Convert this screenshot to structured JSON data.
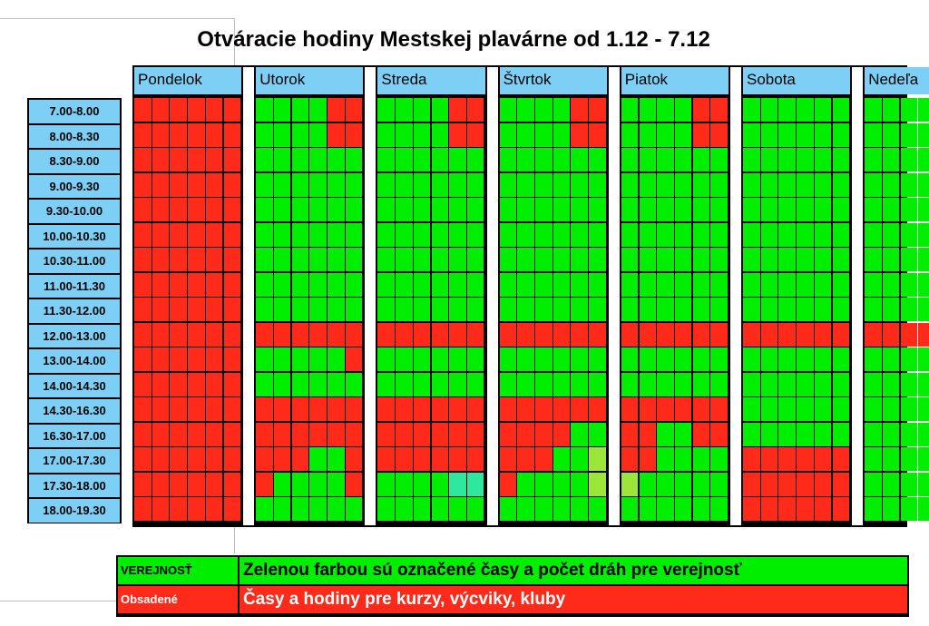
{
  "title": "Otváracie hodiny Mestskej plavárne od 1.12 - 7.12",
  "colors": {
    "public": "#00ee00",
    "occupied": "#ff2a1a",
    "header": "#7ecff5",
    "teal": "#2ee8a0",
    "lime": "#9ce63a"
  },
  "times": [
    "7.00-8.00",
    "8.00-8.30",
    "8.30-9.00",
    "9.00-9.30",
    "9.30-10.00",
    "10.00-10.30",
    "10.30-11.00",
    "11.00-11.30",
    "11.30-12.00",
    "12.00-13.00",
    "13.00-14.00",
    "14.00-14.30",
    "14.30-16.30",
    "16.30-17.00",
    "17.00-17.30",
    "17.30-18.00",
    "18.00-19.30"
  ],
  "schedule": [
    {
      "name": "Pondelok",
      "rows": [
        "RRRRRR",
        "RRRRRR",
        "RRRRRR",
        "RRRRRR",
        "RRRRRR",
        "RRRRRR",
        "RRRRRR",
        "RRRRRR",
        "RRRRRR",
        "RRRRRR",
        "RRRRRR",
        "RRRRRR",
        "RRRRRR",
        "RRRRRR",
        "RRRRRR",
        "RRRRRR",
        "RRRRRR"
      ]
    },
    {
      "name": "Utorok",
      "rows": [
        "GGGGRR",
        "GGGGRR",
        "GGGGGG",
        "GGGGGG",
        "GGGGGG",
        "GGGGGG",
        "GGGGGG",
        "GGGGGG",
        "GGGGGG",
        "RRRRRR",
        "GGGGGR",
        "GGGGGG",
        "RRRRRR",
        "RRRRRR",
        "RRRGGR",
        "RGGGGR",
        "GGGGGG"
      ]
    },
    {
      "name": "Streda",
      "rows": [
        "GGGGRR",
        "GGGGRR",
        "GGGGGG",
        "GGGGGG",
        "GGGGGG",
        "GGGGGG",
        "GGGGGG",
        "GGGGGG",
        "GGGGGG",
        "RRRRRR",
        "GGGGGG",
        "GGGGGG",
        "RRRRRR",
        "RRRRRR",
        "RRRRRR",
        "GGGGTT",
        "GGGGGG"
      ]
    },
    {
      "name": "Štvrtok",
      "rows": [
        "GGGGRR",
        "GGGGRR",
        "GGGGGG",
        "GGGGGG",
        "GGGGGG",
        "GGGGGG",
        "GGGGGG",
        "GGGGGG",
        "GGGGGG",
        "RRRRRR",
        "GGGGGG",
        "GGGGGG",
        "RRRRRR",
        "RRRRGG",
        "RRRGGL",
        "RGGGGL",
        "GGGGGG"
      ]
    },
    {
      "name": "Piatok",
      "rows": [
        "GGGGRR",
        "GGGGRR",
        "GGGGGG",
        "GGGGGG",
        "GGGGGG",
        "GGGGGG",
        "GGGGGG",
        "GGGGGG",
        "GGGGGG",
        "RRRRRR",
        "GGGGGG",
        "GGGGGG",
        "RRRRRR",
        "RRGGRR",
        "RRGGGG",
        "LGGGGG",
        "GGGGGG"
      ]
    },
    {
      "name": "Sobota",
      "rows": [
        "GGGGGG",
        "GGGGGG",
        "GGGGGG",
        "GGGGGG",
        "GGGGGG",
        "GGGGGG",
        "GGGGGG",
        "GGGGGG",
        "GGGGGG",
        "RRRRRR",
        "GGGGGG",
        "GGGGGG",
        "GGGGGG",
        "GGGGGG",
        "RRRRRR",
        "RRRRRR",
        "RRRRRR"
      ]
    },
    {
      "name": "Nedeľa",
      "rows": [
        "GGGGGG",
        "GGGGGG",
        "GGGGGG",
        "GGGGGG",
        "GGGGGG",
        "GGGGGG",
        "GGGGGG",
        "GGGGGG",
        "GGGGGG",
        "RRRRRR",
        "GGGGGG",
        "GGGGGG",
        "GGGGGG",
        "GGGGGG",
        "GGGGGG",
        "GGGGGG",
        "GGGGGG"
      ]
    }
  ],
  "legend": [
    {
      "key": "VEREJNOSŤ",
      "text": "Zelenou farbou sú označené časy a počet dráh pre verejnosť",
      "color": "#00ee00",
      "textColor": "#000000"
    },
    {
      "key": "Obsadené",
      "text": "Časy a hodiny pre kurzy, výcviky, kluby",
      "color": "#ff2a1a",
      "textColor": "#ffffff"
    }
  ]
}
